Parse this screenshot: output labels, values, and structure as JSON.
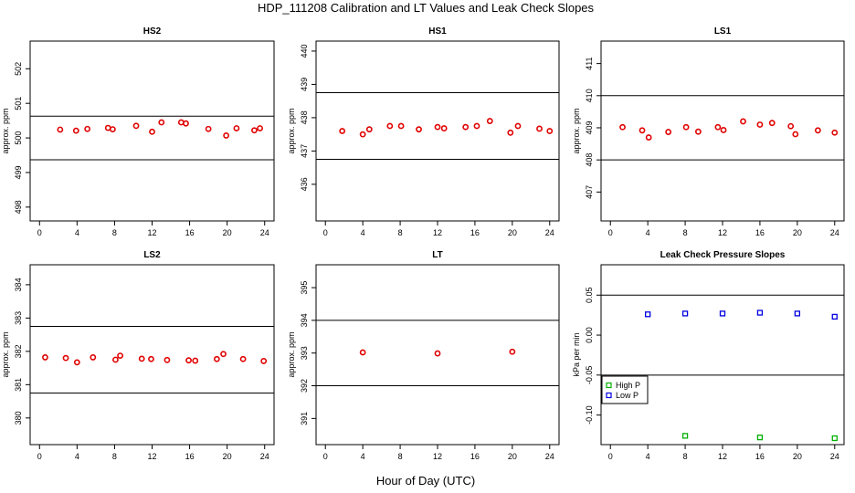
{
  "figure": {
    "title": "HDP_111208  Calibration and LT Values and Leak Check Slopes",
    "xlabel": "Hour of Day (UTC)"
  },
  "colors": {
    "cal": "#e00000",
    "high": "#00b000",
    "low": "#0000e0",
    "axis": "#000000"
  },
  "chart_data": [
    {
      "id": "HS2",
      "type": "scatter",
      "title": "HS2",
      "ylabel": "approx. ppm",
      "xlim": [
        -1,
        25
      ],
      "xticks": [
        0,
        4,
        8,
        12,
        16,
        20,
        24
      ],
      "ylim": [
        497.6,
        502.8
      ],
      "yticks": [
        498,
        499,
        500,
        501,
        502
      ],
      "hlines": [
        499.37,
        500.63
      ],
      "series": [
        {
          "name": "cal",
          "color": "cal",
          "marker": "circle",
          "x": [
            2.2,
            3.9,
            5.1,
            7.3,
            7.8,
            10.3,
            12,
            13,
            15.1,
            15.6,
            18,
            19.9,
            21,
            22.9,
            23.5
          ],
          "y": [
            500.24,
            500.21,
            500.26,
            500.29,
            500.25,
            500.35,
            500.18,
            500.45,
            500.45,
            500.42,
            500.26,
            500.07,
            500.28,
            500.22,
            500.28
          ]
        }
      ]
    },
    {
      "id": "HS1",
      "type": "scatter",
      "title": "HS1",
      "ylabel": "approx. ppm",
      "xlim": [
        -1,
        25
      ],
      "xticks": [
        0,
        4,
        8,
        12,
        16,
        20,
        24
      ],
      "ylim": [
        434.9,
        440.3
      ],
      "yticks": [
        436,
        437,
        438,
        439,
        440
      ],
      "hlines": [
        436.75,
        438.75
      ],
      "series": [
        {
          "name": "cal",
          "color": "cal",
          "marker": "circle",
          "x": [
            1.8,
            4,
            4.7,
            6.9,
            8.1,
            10,
            12,
            12.7,
            15,
            16.2,
            17.6,
            19.8,
            20.6,
            22.9,
            24
          ],
          "y": [
            437.6,
            437.5,
            437.65,
            437.75,
            437.75,
            437.65,
            437.72,
            437.68,
            437.72,
            437.75,
            437.9,
            437.55,
            437.75,
            437.67,
            437.6
          ]
        }
      ]
    },
    {
      "id": "LS1",
      "type": "scatter",
      "title": "LS1",
      "ylabel": "approx. ppm",
      "xlim": [
        -1,
        25
      ],
      "xticks": [
        0,
        4,
        8,
        12,
        16,
        20,
        24
      ],
      "ylim": [
        406.1,
        411.7
      ],
      "yticks": [
        407,
        408,
        409,
        410,
        411
      ],
      "hlines": [
        408,
        410
      ],
      "series": [
        {
          "name": "cal",
          "color": "cal",
          "marker": "circle",
          "x": [
            1.3,
            3.4,
            4.1,
            6.2,
            8.1,
            9.4,
            11.5,
            12.1,
            14.2,
            16,
            17.3,
            19.3,
            19.8,
            22.2,
            24
          ],
          "y": [
            409.02,
            408.92,
            408.7,
            408.87,
            409.02,
            408.88,
            409.02,
            408.93,
            409.2,
            409.1,
            409.15,
            409.05,
            408.8,
            408.92,
            408.85
          ]
        }
      ]
    },
    {
      "id": "LS2",
      "type": "scatter",
      "title": "LS2",
      "ylabel": "approx. ppm",
      "xlim": [
        -1,
        25
      ],
      "xticks": [
        0,
        4,
        8,
        12,
        16,
        20,
        24
      ],
      "ylim": [
        379.2,
        384.6
      ],
      "yticks": [
        380,
        381,
        382,
        383,
        384
      ],
      "hlines": [
        380.75,
        382.75
      ],
      "series": [
        {
          "name": "cal",
          "color": "cal",
          "marker": "circle",
          "x": [
            0.6,
            2.8,
            4,
            5.7,
            8.1,
            8.6,
            10.9,
            11.9,
            13.6,
            15.9,
            16.6,
            18.9,
            19.6,
            21.7,
            23.9
          ],
          "y": [
            381.82,
            381.8,
            381.67,
            381.82,
            381.75,
            381.87,
            381.78,
            381.77,
            381.74,
            381.73,
            381.72,
            381.77,
            381.92,
            381.77,
            381.71
          ]
        }
      ]
    },
    {
      "id": "LT",
      "type": "scatter",
      "title": "LT",
      "ylabel": "approx. ppm",
      "xlim": [
        -1,
        25
      ],
      "xticks": [
        0,
        4,
        8,
        12,
        16,
        20,
        24
      ],
      "ylim": [
        390.2,
        395.7
      ],
      "yticks": [
        391,
        392,
        393,
        394,
        395
      ],
      "hlines": [
        392,
        394
      ],
      "series": [
        {
          "name": "cal",
          "color": "cal",
          "marker": "circle",
          "x": [
            4,
            12,
            20
          ],
          "y": [
            393.02,
            392.99,
            393.04
          ]
        }
      ]
    },
    {
      "id": "LEAK",
      "type": "scatter",
      "title": "Leak Check Pressure Slopes",
      "ylabel": "kPa per min",
      "xlim": [
        -1,
        25
      ],
      "xticks": [
        0,
        4,
        8,
        12,
        16,
        20,
        24
      ],
      "ylim": [
        -0.137,
        0.088
      ],
      "yticks": [
        -0.1,
        -0.05,
        0,
        0.05
      ],
      "ytick_labels": [
        "-0.10",
        "-0.05",
        "0.00",
        "0.05"
      ],
      "hlines": [
        0.05,
        -0.05
      ],
      "legend": {
        "position": "left-middle",
        "items": [
          "High P",
          "Low P"
        ]
      },
      "series": [
        {
          "name": "High P",
          "color": "high",
          "marker": "square",
          "x": [
            8,
            16,
            24
          ],
          "y": [
            -0.126,
            -0.128,
            -0.129
          ]
        },
        {
          "name": "Low P",
          "color": "low",
          "marker": "square",
          "x": [
            4,
            8,
            12,
            16,
            20,
            24
          ],
          "y": [
            0.026,
            0.027,
            0.027,
            0.028,
            0.027,
            0.023
          ]
        }
      ]
    }
  ]
}
